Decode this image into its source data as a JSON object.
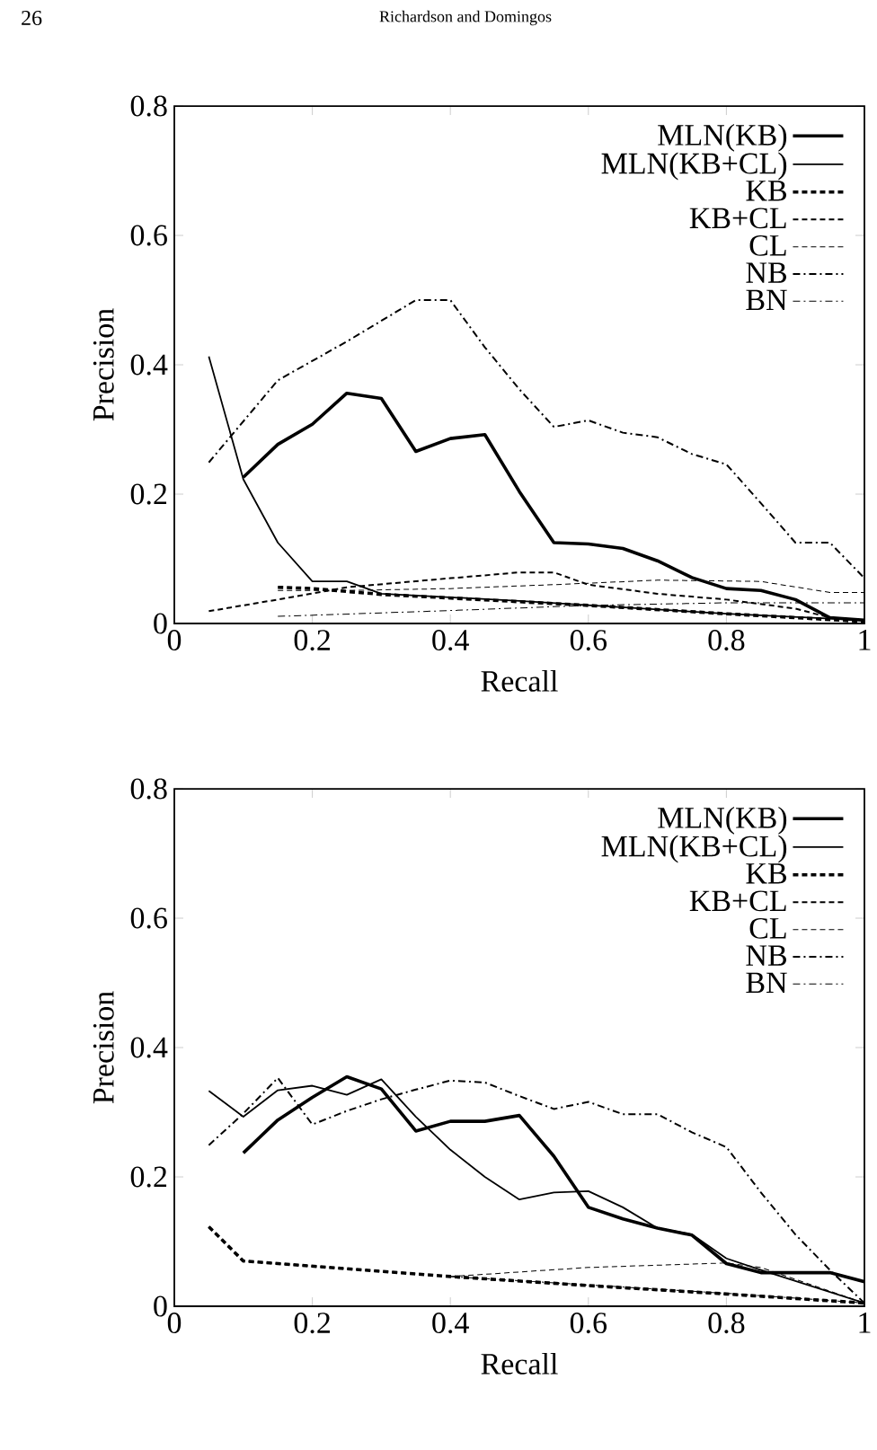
{
  "chart_data": [
    {
      "type": "line",
      "xlabel": "Recall",
      "ylabel": "Precision",
      "xlim": [
        0,
        1
      ],
      "ylim": [
        0,
        0.8
      ],
      "xticks": [
        0,
        0.2,
        0.4,
        0.6,
        0.8,
        1
      ],
      "yticks": [
        0,
        0.2,
        0.4,
        0.6,
        0.8
      ],
      "legend": "top right",
      "grid": false,
      "marker": "none",
      "annotations": [
        "26",
        "Richardson and Domingos"
      ],
      "series": [
        {
          "name": "MLN(KB)",
          "color": "#000000",
          "line_style": "solid",
          "x": [
            0.1,
            0.15,
            0.2,
            0.25,
            0.3,
            0.35,
            0.4,
            0.45,
            0.5,
            0.55,
            0.6,
            0.65,
            0.7,
            0.75,
            0.8,
            0.85,
            0.9,
            0.95,
            1
          ],
          "values": [
            0.226,
            0.277,
            0.308,
            0.356,
            0.348,
            0.266,
            0.286,
            0.292,
            0.204,
            0.125,
            0.123,
            0.116,
            0.097,
            0.071,
            0.054,
            0.051,
            0.037,
            0.009,
            0.005
          ]
        },
        {
          "name": "MLN(KB+CL)",
          "color": "#000000",
          "line_style": "solid",
          "x": [
            0.05,
            0.1,
            0.15,
            0.2,
            0.25,
            0.3,
            0.5,
            0.8,
            1
          ],
          "values": [
            0.413,
            0.223,
            0.125,
            0.065,
            0.065,
            0.046,
            0.035,
            0.015,
            0.005
          ]
        },
        {
          "name": "KB",
          "color": "#000000",
          "line_style": "dashed",
          "x": [
            0.15,
            0.2,
            0.3,
            0.6,
            0.8,
            1
          ],
          "values": [
            0.056,
            0.054,
            0.045,
            0.028,
            0.015,
            0.003
          ]
        },
        {
          "name": "KB+CL",
          "color": "#000000",
          "line_style": "dashed",
          "x": [
            0.05,
            0.15,
            0.25,
            0.4,
            0.5,
            0.55,
            0.6,
            0.7,
            0.8,
            0.9,
            0.95,
            1
          ],
          "values": [
            0.019,
            0.037,
            0.056,
            0.07,
            0.079,
            0.079,
            0.06,
            0.046,
            0.037,
            0.023,
            0.009,
            0.005
          ]
        },
        {
          "name": "CL",
          "color": "#000000",
          "line_style": "dashed",
          "x": [
            0.15,
            0.25,
            0.4,
            0.55,
            0.7,
            0.85,
            0.95,
            1
          ],
          "values": [
            0.051,
            0.051,
            0.054,
            0.06,
            0.067,
            0.065,
            0.048,
            0.048
          ]
        },
        {
          "name": "NB",
          "color": "#000000",
          "line_style": "dashdot",
          "x": [
            0.05,
            0.15,
            0.25,
            0.35,
            0.4,
            0.45,
            0.5,
            0.55,
            0.6,
            0.65,
            0.7,
            0.75,
            0.8,
            0.85,
            0.9,
            0.95,
            1
          ],
          "values": [
            0.249,
            0.376,
            0.436,
            0.5,
            0.5,
            0.427,
            0.362,
            0.304,
            0.314,
            0.295,
            0.288,
            0.262,
            0.246,
            0.186,
            0.125,
            0.125,
            0.07
          ]
        },
        {
          "name": "BN",
          "color": "#000000",
          "line_style": "dashdot",
          "x": [
            0.15,
            0.4,
            0.6,
            0.8,
            0.95,
            1
          ],
          "values": [
            0.011,
            0.02,
            0.028,
            0.032,
            0.032,
            0.032
          ]
        }
      ]
    },
    {
      "type": "line",
      "xlabel": "Recall",
      "ylabel": "Precision",
      "xlim": [
        0,
        1
      ],
      "ylim": [
        0,
        0.8
      ],
      "xticks": [
        0,
        0.2,
        0.4,
        0.6,
        0.8,
        1
      ],
      "yticks": [
        0,
        0.2,
        0.4,
        0.6,
        0.8
      ],
      "legend": "top right",
      "grid": false,
      "marker": "none",
      "series": [
        {
          "name": "MLN(KB)",
          "color": "#000000",
          "line_style": "solid",
          "x": [
            0.1,
            0.15,
            0.2,
            0.25,
            0.3,
            0.35,
            0.4,
            0.45,
            0.5,
            0.55,
            0.6,
            0.65,
            0.7,
            0.75,
            0.8,
            0.85,
            0.9,
            0.95,
            1
          ],
          "values": [
            0.237,
            0.288,
            0.323,
            0.355,
            0.336,
            0.271,
            0.286,
            0.286,
            0.295,
            0.232,
            0.153,
            0.135,
            0.121,
            0.11,
            0.066,
            0.052,
            0.052,
            0.052,
            0.038
          ]
        },
        {
          "name": "MLN(KB+CL)",
          "color": "#000000",
          "line_style": "solid",
          "x": [
            0.05,
            0.1,
            0.15,
            0.2,
            0.25,
            0.3,
            0.35,
            0.4,
            0.45,
            0.5,
            0.55,
            0.6,
            0.65,
            0.7,
            0.75,
            0.8,
            0.85,
            1
          ],
          "values": [
            0.333,
            0.293,
            0.334,
            0.341,
            0.327,
            0.351,
            0.293,
            0.242,
            0.2,
            0.165,
            0.176,
            0.178,
            0.153,
            0.121,
            0.111,
            0.074,
            0.056,
            0.005
          ]
        },
        {
          "name": "KB",
          "color": "#000000",
          "line_style": "dashed",
          "x": [
            0.05,
            0.1,
            0.4,
            0.6,
            0.8,
            1
          ],
          "values": [
            0.123,
            0.07,
            0.046,
            0.032,
            0.019,
            0.005
          ]
        },
        {
          "name": "KB+CL",
          "color": "#000000",
          "line_style": "dashed",
          "x": [
            0.05,
            0.1,
            0.4,
            0.6,
            0.8,
            1
          ],
          "values": [
            0.123,
            0.07,
            0.046,
            0.032,
            0.019,
            0.005
          ]
        },
        {
          "name": "CL",
          "color": "#000000",
          "line_style": "dashed",
          "x": [
            0.4,
            0.6,
            0.8,
            0.85,
            1
          ],
          "values": [
            0.046,
            0.06,
            0.067,
            0.06,
            0.005
          ]
        },
        {
          "name": "NB",
          "color": "#000000",
          "line_style": "dashdot",
          "x": [
            0.05,
            0.1,
            0.15,
            0.2,
            0.25,
            0.3,
            0.35,
            0.4,
            0.45,
            0.5,
            0.55,
            0.6,
            0.65,
            0.7,
            0.75,
            0.8,
            0.85,
            0.9,
            0.95,
            1
          ],
          "values": [
            0.249,
            0.298,
            0.353,
            0.281,
            0.302,
            0.32,
            0.335,
            0.349,
            0.346,
            0.325,
            0.305,
            0.316,
            0.297,
            0.297,
            0.269,
            0.246,
            0.176,
            0.111,
            0.056,
            0.005
          ]
        },
        {
          "name": "BN",
          "color": "#000000",
          "line_style": "dashdot",
          "x": [
            0.4,
            0.8,
            1
          ],
          "values": [
            0.046,
            0.02,
            0.005
          ]
        }
      ]
    }
  ]
}
